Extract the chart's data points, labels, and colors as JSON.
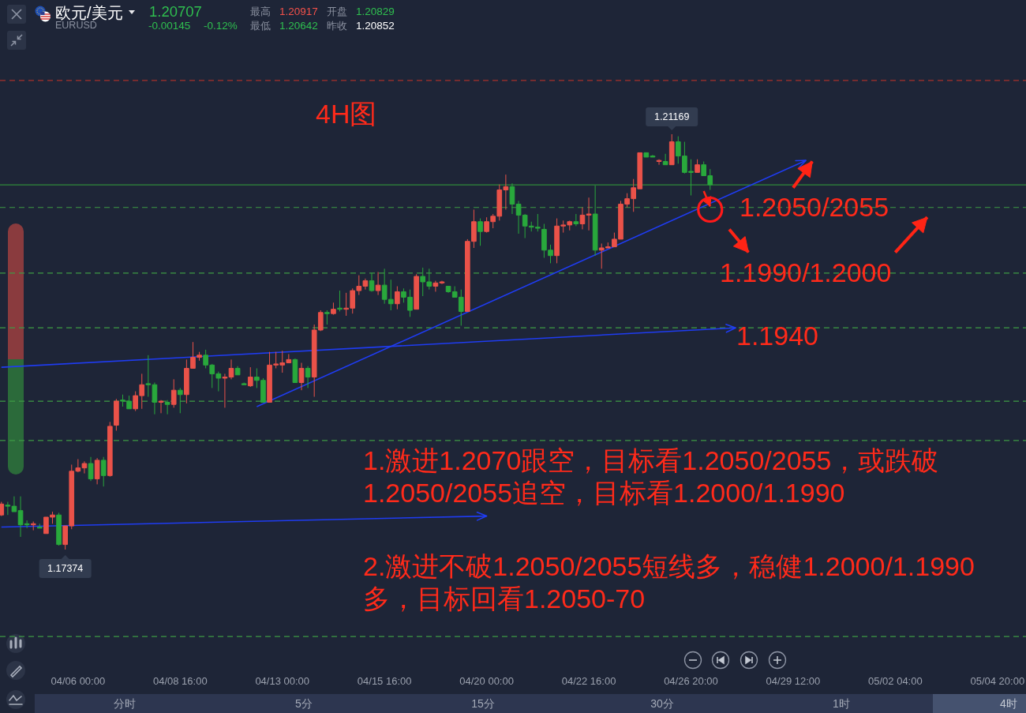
{
  "chart_data": {
    "type": "candlestick",
    "title": "欧元/美元",
    "subtitle": "EURUSD",
    "categories": [
      null,
      null,
      null,
      null,
      null,
      null,
      null,
      null,
      null,
      null,
      null,
      null,
      "04/06 00:00",
      null,
      null,
      null,
      null,
      null,
      null,
      null,
      null,
      null,
      null,
      null,
      null,
      null,
      null,
      null,
      "04/08 16:00",
      null,
      null,
      null,
      null,
      null,
      null,
      null,
      null,
      null,
      null,
      null,
      null,
      null,
      null,
      null,
      "04/13 00:00",
      null,
      null,
      null,
      null,
      null,
      null,
      null,
      null,
      null,
      null,
      null,
      null,
      null,
      null,
      null,
      "04/15 16:00",
      null,
      null,
      null,
      null,
      null,
      null,
      null,
      null,
      null,
      null,
      null,
      null,
      null,
      null,
      null,
      "04/20 00:00",
      null,
      null,
      null,
      null,
      null,
      null,
      null,
      null,
      null,
      null,
      null,
      null,
      null,
      null,
      null,
      "04/22 16:00",
      null,
      null,
      null,
      null,
      null,
      null,
      null,
      null,
      null,
      null,
      null,
      null,
      null,
      null,
      null,
      "04/26 20:00",
      null,
      null,
      null,
      null,
      null,
      null,
      null,
      null,
      null,
      null,
      null,
      null,
      null,
      null,
      null,
      "04/29 12:00",
      null,
      null,
      null,
      null,
      null,
      null,
      null,
      null,
      null,
      null,
      null,
      null,
      null,
      null,
      null,
      "05/02 04:00",
      null,
      null,
      null,
      null,
      null,
      null,
      null,
      null,
      null,
      null,
      null,
      null,
      null,
      null,
      null,
      "05/04 20:00",
      null,
      null,
      null
    ],
    "ohlc": [
      [
        1.1769,
        1.1781,
        1.1768,
        1.1779
      ],
      [
        1.1778,
        1.1781,
        1.1769,
        1.1777
      ],
      [
        1.1777,
        1.1786,
        1.1772,
        1.1772
      ],
      [
        1.1773,
        1.1786,
        1.1749,
        1.176
      ],
      [
        1.1761,
        1.1764,
        1.1757,
        1.176
      ],
      [
        1.176,
        1.1763,
        1.1755,
        1.1761
      ],
      [
        1.1758,
        1.1761,
        1.1757,
        1.1757
      ],
      [
        1.1752,
        1.1767,
        1.1752,
        1.1767
      ],
      [
        1.1767,
        1.1772,
        1.1761,
        1.1769
      ],
      [
        1.1769,
        1.1771,
        1.1741,
        1.1742
      ],
      [
        1.1742,
        1.1759,
        1.17374,
        1.1759
      ],
      [
        1.1759,
        1.1815,
        1.1756,
        1.1809
      ],
      [
        1.1809,
        1.182,
        1.1808,
        1.1812
      ],
      [
        1.1812,
        1.1818,
        1.1807,
        1.1816
      ],
      [
        1.1816,
        1.1822,
        1.18,
        1.1802
      ],
      [
        1.1802,
        1.1821,
        1.1797,
        1.1819
      ],
      [
        1.1819,
        1.1822,
        1.1795,
        1.1805
      ],
      [
        1.1805,
        1.1854,
        1.1804,
        1.185
      ],
      [
        1.1851,
        1.1875,
        1.1846,
        1.1873
      ],
      [
        1.1874,
        1.1879,
        1.1868,
        1.1873
      ],
      [
        1.1873,
        1.1878,
        1.1866,
        1.1866
      ],
      [
        1.1866,
        1.1882,
        1.1864,
        1.1878
      ],
      [
        1.1878,
        1.1898,
        1.1866,
        1.1888
      ],
      [
        1.1889,
        1.1915,
        1.1877,
        1.1888
      ],
      [
        1.1888,
        1.189,
        1.1861,
        1.1872
      ],
      [
        1.1872,
        1.1874,
        1.1862,
        1.1873
      ],
      [
        1.1872,
        1.1874,
        1.1861,
        1.187
      ],
      [
        1.187,
        1.1893,
        1.1867,
        1.1883
      ],
      [
        1.1883,
        1.1885,
        1.1862,
        1.1879
      ],
      [
        1.1879,
        1.1911,
        1.1871,
        1.1903
      ],
      [
        1.1903,
        1.1927,
        1.1903,
        1.1913
      ],
      [
        1.1913,
        1.1918,
        1.191,
        1.1915
      ],
      [
        1.1915,
        1.192,
        1.1903,
        1.1906
      ],
      [
        1.1906,
        1.1907,
        1.1885,
        1.1898
      ],
      [
        1.1898,
        1.19,
        1.1882,
        1.1894
      ],
      [
        1.1894,
        1.1898,
        1.1867,
        1.1895
      ],
      [
        1.1895,
        1.1911,
        1.1893,
        1.1903
      ],
      [
        1.1903,
        1.1905,
        1.1897,
        1.1897
      ],
      [
        1.1889,
        1.189,
        1.1888,
        1.1888
      ],
      [
        1.1887,
        1.1904,
        1.1886,
        1.1895
      ],
      [
        1.1895,
        1.1903,
        1.1885,
        1.1892
      ],
      [
        1.1892,
        1.1894,
        1.1872,
        1.1872
      ],
      [
        1.1872,
        1.1918,
        1.1872,
        1.1906
      ],
      [
        1.1906,
        1.1918,
        1.1903,
        1.1907
      ],
      [
        1.1906,
        1.1919,
        1.1899,
        1.1908
      ],
      [
        1.1908,
        1.1916,
        1.1908,
        1.1911
      ],
      [
        1.1911,
        1.1912,
        1.189,
        1.189
      ],
      [
        1.189,
        1.1908,
        1.1883,
        1.1903
      ],
      [
        1.1903,
        1.1905,
        1.1885,
        1.1895
      ],
      [
        1.1895,
        1.1943,
        1.1877,
        1.1938
      ],
      [
        1.1938,
        1.1956,
        1.1937,
        1.1954
      ],
      [
        1.1954,
        1.1956,
        1.1943,
        1.1953
      ],
      [
        1.1953,
        1.1963,
        1.1952,
        1.1957
      ],
      [
        1.1958,
        1.1974,
        1.1955,
        1.1957
      ],
      [
        1.1957,
        1.1972,
        1.1951,
        1.1958
      ],
      [
        1.1958,
        1.1976,
        1.1953,
        1.1974
      ],
      [
        1.1974,
        1.1988,
        1.197,
        1.1978
      ],
      [
        1.1978,
        1.1985,
        1.1975,
        1.1983
      ],
      [
        1.1983,
        1.199,
        1.1973,
        1.1974
      ],
      [
        1.1974,
        1.1991,
        1.197,
        1.1979
      ],
      [
        1.1979,
        1.1994,
        1.1962,
        1.1966
      ],
      [
        1.1966,
        1.1984,
        1.1956,
        1.1962
      ],
      [
        1.1962,
        1.1978,
        1.1957,
        1.1973
      ],
      [
        1.1973,
        1.1976,
        1.1963,
        1.1968
      ],
      [
        1.1968,
        1.1975,
        1.195,
        1.1956
      ],
      [
        1.1957,
        1.1989,
        1.1957,
        1.1987
      ],
      [
        1.1987,
        1.1995,
        1.1969,
        1.1982
      ],
      [
        1.1982,
        1.1994,
        1.1975,
        1.1978
      ],
      [
        1.1978,
        1.1983,
        1.1973,
        1.1981
      ],
      [
        1.1981,
        1.1983,
        1.198,
        1.1982
      ],
      [
        1.1978,
        1.1978,
        1.1972,
        1.1973
      ],
      [
        1.1973,
        1.1978,
        1.1968,
        1.1968
      ],
      [
        1.1968,
        1.1975,
        1.1942,
        1.1955
      ],
      [
        1.1955,
        1.2021,
        1.1955,
        1.2019
      ],
      [
        1.2019,
        1.2048,
        1.2013,
        1.2037
      ],
      [
        1.2037,
        1.204,
        1.2015,
        1.2028
      ],
      [
        1.2028,
        1.2041,
        1.2027,
        1.2037
      ],
      [
        1.2037,
        1.2044,
        1.2031,
        1.2042
      ],
      [
        1.2042,
        1.2071,
        1.2038,
        1.2066
      ],
      [
        1.2066,
        1.208,
        1.2048,
        1.2069
      ],
      [
        1.2069,
        1.2072,
        1.2044,
        1.2053
      ],
      [
        1.2053,
        1.2056,
        1.2026,
        1.2043
      ],
      [
        1.2043,
        1.2044,
        1.2022,
        1.2033
      ],
      [
        1.2033,
        1.2037,
        1.2028,
        1.2032
      ],
      [
        1.2032,
        1.2044,
        1.2028,
        1.2031
      ],
      [
        1.203,
        1.2035,
        1.2004,
        1.2011
      ],
      [
        1.2011,
        1.2016,
        1.1999,
        1.2006
      ],
      [
        1.2006,
        1.204,
        1.1999,
        1.2033
      ],
      [
        1.2033,
        1.2038,
        1.2027,
        1.2034
      ],
      [
        1.2034,
        1.2038,
        1.2029,
        1.2037
      ],
      [
        1.2037,
        1.2044,
        1.2033,
        1.2035
      ],
      [
        1.2035,
        1.205,
        1.203,
        1.2043
      ],
      [
        1.2043,
        1.2059,
        1.2029,
        1.2044
      ],
      [
        1.2044,
        1.207,
        1.2006,
        1.2011
      ],
      [
        1.2011,
        1.2017,
        1.1994,
        1.2013
      ],
      [
        1.2013,
        1.2018,
        1.2013,
        1.2014
      ],
      [
        1.2014,
        1.2027,
        1.2014,
        1.2021
      ],
      [
        1.2021,
        1.2056,
        1.2021,
        1.2053
      ],
      [
        1.2053,
        1.2063,
        1.205,
        1.2058
      ],
      [
        1.2058,
        1.2076,
        1.2046,
        1.2068
      ],
      [
        1.2067,
        1.21,
        1.2067,
        1.21
      ],
      [
        1.21,
        1.21,
        1.2096,
        1.2096
      ],
      [
        1.2097,
        1.2098,
        1.2096,
        1.2096
      ],
      [
        1.2092,
        1.2094,
        1.2089,
        1.2093
      ],
      [
        1.2092,
        1.2099,
        1.2089,
        1.2089
      ],
      [
        1.2089,
        1.21169,
        1.2089,
        1.211
      ],
      [
        1.211,
        1.2115,
        1.209,
        1.2097
      ],
      [
        1.2097,
        1.211,
        1.2081,
        1.2082
      ],
      [
        1.2083,
        1.2094,
        1.2061,
        1.2082
      ],
      [
        1.2082,
        1.2094,
        1.2082,
        1.2089
      ],
      [
        1.2089,
        1.2092,
        1.2079,
        1.2079
      ],
      [
        1.2079,
        1.2085,
        1.2066,
        1.20707
      ],
      null,
      null,
      null,
      null,
      null,
      null,
      null,
      null,
      null,
      null,
      null,
      null,
      null,
      null,
      null,
      null,
      null,
      null,
      null,
      null,
      null,
      null,
      null,
      null,
      null,
      null,
      null,
      null,
      null,
      null,
      null,
      null,
      null,
      null,
      null,
      null,
      null,
      null,
      null,
      null,
      null,
      null,
      null,
      null,
      null,
      null,
      null,
      null
    ],
    "series": [
      {
        "type": "line",
        "color": "#1f3cf2",
        "values": [
          1.1758,
          null,
          null,
          null,
          null,
          null,
          null,
          null,
          null,
          null,
          null,
          null,
          null,
          null,
          null,
          null,
          null,
          null,
          null,
          null,
          null,
          null,
          null,
          null,
          null,
          null,
          null,
          null,
          null,
          null,
          null,
          null,
          null,
          null,
          null,
          null,
          null,
          null,
          null,
          null,
          null,
          null,
          null,
          null,
          null,
          null,
          null,
          null,
          null,
          null,
          null,
          null,
          null,
          null,
          null,
          null,
          null,
          null,
          null,
          null,
          null,
          null,
          null,
          null,
          null,
          null,
          null,
          null,
          null,
          null,
          null,
          null,
          null,
          null,
          null,
          null,
          1.1768,
          null,
          null,
          null,
          null,
          null,
          null,
          null,
          null,
          null,
          null,
          null,
          null,
          null,
          null,
          null,
          null,
          null,
          null,
          null,
          null,
          null,
          null,
          null,
          null,
          null,
          null,
          null,
          null,
          null,
          null,
          null,
          null,
          null,
          null,
          null,
          null,
          null,
          null,
          null,
          null,
          null,
          null,
          null,
          null,
          null,
          null,
          null,
          null,
          null,
          null,
          null,
          null,
          null,
          null,
          null,
          null,
          null,
          null,
          null,
          null,
          null,
          null,
          null,
          null,
          null,
          null,
          null,
          null,
          null,
          null,
          null,
          null,
          null,
          null,
          null,
          null,
          null,
          null,
          null,
          null,
          null,
          null,
          null
        ]
      },
      {
        "type": "line",
        "color": "#1f3cf2",
        "values": [
          1.1904,
          null,
          null,
          null,
          null,
          null,
          null,
          null,
          null,
          null,
          null,
          null,
          null,
          null,
          null,
          null,
          null,
          null,
          null,
          null,
          null,
          null,
          null,
          null,
          null,
          null,
          null,
          null,
          null,
          null,
          null,
          null,
          null,
          null,
          null,
          null,
          null,
          null,
          null,
          null,
          null,
          null,
          null,
          null,
          null,
          null,
          null,
          null,
          null,
          null,
          null,
          null,
          null,
          null,
          null,
          null,
          null,
          null,
          null,
          null,
          null,
          null,
          null,
          null,
          null,
          null,
          null,
          null,
          null,
          null,
          null,
          null,
          null,
          null,
          null,
          null,
          null,
          null,
          null,
          null,
          null,
          null,
          null,
          null,
          null,
          null,
          null,
          null,
          null,
          null,
          null,
          null,
          null,
          null,
          null,
          null,
          null,
          null,
          null,
          null,
          null,
          null,
          null,
          null,
          null,
          null,
          null,
          null,
          null,
          null,
          null,
          null,
          null,
          null,
          null,
          1.194,
          null,
          null,
          null,
          null,
          null,
          null,
          null,
          null,
          null,
          null,
          null,
          null,
          null,
          null,
          null,
          null,
          null,
          null,
          null,
          null,
          null,
          null,
          null,
          null,
          null,
          null,
          null,
          null,
          null,
          null,
          null,
          null,
          null,
          null,
          null,
          null,
          null,
          null,
          null,
          null,
          null,
          null,
          null,
          null
        ]
      },
      {
        "type": "line",
        "color": "#1f3cf2",
        "values": [
          null,
          null,
          null,
          null,
          null,
          null,
          null,
          null,
          null,
          null,
          null,
          null,
          null,
          null,
          null,
          null,
          null,
          null,
          null,
          null,
          null,
          null,
          null,
          null,
          null,
          null,
          null,
          null,
          null,
          null,
          null,
          null,
          null,
          null,
          null,
          null,
          null,
          null,
          null,
          null,
          1.1868,
          null,
          null,
          null,
          null,
          null,
          null,
          null,
          null,
          null,
          null,
          null,
          null,
          null,
          null,
          null,
          null,
          null,
          null,
          null,
          null,
          null,
          null,
          null,
          null,
          null,
          null,
          null,
          null,
          null,
          null,
          null,
          null,
          null,
          null,
          null,
          null,
          null,
          null,
          null,
          null,
          null,
          null,
          null,
          null,
          null,
          null,
          null,
          null,
          null,
          null,
          null,
          null,
          null,
          null,
          null,
          null,
          null,
          null,
          null,
          null,
          null,
          null,
          null,
          null,
          null,
          null,
          null,
          null,
          null,
          null,
          null,
          null,
          null,
          null,
          null,
          null,
          null,
          null,
          null,
          null,
          null,
          null,
          null,
          null,
          null,
          1.2093,
          null,
          null,
          null,
          null,
          null,
          null,
          null,
          null,
          null,
          null,
          null,
          null,
          null,
          null,
          null,
          null,
          null,
          null,
          null,
          null,
          null,
          null,
          null,
          null,
          null,
          null,
          null,
          null,
          null,
          null,
          null,
          null,
          null
        ]
      },
      {
        "type": "line",
        "color": "#ff2415",
        "values": [
          null,
          null,
          null,
          null,
          null,
          null,
          null,
          null,
          null,
          null,
          null,
          null,
          null,
          null,
          null,
          null,
          null,
          null,
          null,
          null,
          null,
          null,
          null,
          null,
          null,
          null,
          null,
          null,
          null,
          null,
          null,
          null,
          null,
          null,
          null,
          null,
          null,
          null,
          null,
          null,
          null,
          null,
          null,
          null,
          null,
          null,
          null,
          null,
          null,
          null,
          null,
          null,
          null,
          null,
          null,
          null,
          null,
          null,
          null,
          null,
          null,
          null,
          null,
          null,
          null,
          null,
          null,
          null,
          null,
          null,
          null,
          null,
          null,
          null,
          null,
          null,
          null,
          null,
          null,
          null,
          null,
          null,
          null,
          null,
          null,
          null,
          null,
          null,
          null,
          null,
          null,
          null,
          null,
          null,
          null,
          null,
          null,
          null,
          null,
          null,
          null,
          null,
          null,
          null,
          null,
          null,
          null,
          null,
          null,
          null,
          null,
          null,
          null,
          null,
          null,
          null,
          null,
          null,
          null,
          null,
          null,
          null,
          null,
          null,
          1.2068,
          null,
          null,
          1.2092,
          null,
          null,
          null,
          null,
          null,
          null,
          null,
          null,
          null,
          null,
          null,
          null,
          null,
          null,
          null,
          null,
          null,
          null,
          null,
          null,
          null,
          null,
          null,
          null,
          null,
          null,
          null,
          null,
          null,
          null,
          null,
          null
        ]
      },
      {
        "type": "line",
        "color": "#ff2415",
        "values": [
          null,
          null,
          null,
          null,
          null,
          null,
          null,
          null,
          null,
          null,
          null,
          null,
          null,
          null,
          null,
          null,
          null,
          null,
          null,
          null,
          null,
          null,
          null,
          null,
          null,
          null,
          null,
          null,
          null,
          null,
          null,
          null,
          null,
          null,
          null,
          null,
          null,
          null,
          null,
          null,
          null,
          null,
          null,
          null,
          null,
          null,
          null,
          null,
          null,
          null,
          null,
          null,
          null,
          null,
          null,
          null,
          null,
          null,
          null,
          null,
          null,
          null,
          null,
          null,
          null,
          null,
          null,
          null,
          null,
          null,
          null,
          null,
          null,
          null,
          null,
          null,
          null,
          null,
          null,
          null,
          null,
          null,
          null,
          null,
          null,
          null,
          null,
          null,
          null,
          null,
          null,
          null,
          null,
          null,
          null,
          null,
          null,
          null,
          null,
          null,
          null,
          null,
          null,
          null,
          null,
          null,
          null,
          null,
          null,
          null,
          null,
          null,
          null,
          null,
          1.203,
          null,
          null,
          1.2009,
          null,
          null,
          null,
          null,
          null,
          null,
          null,
          null,
          null,
          null,
          null,
          null,
          null,
          null,
          null,
          null,
          null,
          null,
          null,
          null,
          null,
          null,
          null,
          null,
          null,
          null,
          null,
          null,
          null,
          null,
          null,
          null,
          null,
          null,
          null,
          null,
          null,
          null,
          null,
          null,
          null,
          null
        ]
      },
      {
        "type": "line",
        "color": "#ff2415",
        "values": [
          null,
          null,
          null,
          null,
          null,
          null,
          null,
          null,
          null,
          null,
          null,
          null,
          null,
          null,
          null,
          null,
          null,
          null,
          null,
          null,
          null,
          null,
          null,
          null,
          null,
          null,
          null,
          null,
          null,
          null,
          null,
          null,
          null,
          null,
          null,
          null,
          null,
          null,
          null,
          null,
          null,
          null,
          null,
          null,
          null,
          null,
          null,
          null,
          null,
          null,
          null,
          null,
          null,
          null,
          null,
          null,
          null,
          null,
          null,
          null,
          null,
          null,
          null,
          null,
          null,
          null,
          null,
          null,
          null,
          null,
          null,
          null,
          null,
          null,
          null,
          null,
          null,
          null,
          null,
          null,
          null,
          null,
          null,
          null,
          null,
          null,
          null,
          null,
          null,
          null,
          null,
          null,
          null,
          null,
          null,
          null,
          null,
          null,
          null,
          null,
          null,
          null,
          null,
          null,
          null,
          null,
          null,
          null,
          null,
          null,
          null,
          null,
          null,
          null,
          null,
          null,
          null,
          null,
          null,
          null,
          null,
          null,
          null,
          null,
          null,
          null,
          null,
          null,
          null,
          null,
          null,
          null,
          null,
          null,
          null,
          null,
          null,
          null,
          null,
          null,
          1.2009,
          null,
          null,
          null,
          null,
          1.2041,
          null,
          null,
          null,
          null,
          null,
          null,
          null,
          null,
          null,
          null,
          null,
          null,
          null,
          null
        ]
      },
      {
        "type": "line",
        "color": "#ff2415",
        "values": [
          null,
          null,
          null,
          null,
          null,
          null,
          null,
          null,
          null,
          null,
          null,
          null,
          null,
          null,
          null,
          null,
          null,
          null,
          null,
          null,
          null,
          null,
          null,
          null,
          null,
          null,
          null,
          null,
          null,
          null,
          null,
          null,
          null,
          null,
          null,
          null,
          null,
          null,
          null,
          null,
          null,
          null,
          null,
          null,
          null,
          null,
          null,
          null,
          null,
          null,
          null,
          null,
          null,
          null,
          null,
          null,
          null,
          null,
          null,
          null,
          null,
          null,
          null,
          null,
          null,
          null,
          null,
          null,
          null,
          null,
          null,
          null,
          null,
          null,
          null,
          null,
          null,
          null,
          null,
          null,
          null,
          null,
          null,
          null,
          null,
          null,
          null,
          null,
          null,
          null,
          null,
          null,
          null,
          null,
          null,
          null,
          null,
          null,
          null,
          null,
          null,
          null,
          null,
          null,
          null,
          null,
          null,
          null,
          null,
          null,
          1.2065,
          1.2051,
          null,
          null,
          null,
          null,
          null,
          null,
          null,
          null,
          null,
          null,
          null,
          null,
          null,
          null,
          null,
          null,
          null,
          null,
          null,
          null,
          null,
          null,
          null,
          null,
          null,
          null,
          null,
          null,
          null,
          null,
          null,
          null,
          null,
          null,
          null,
          null,
          null,
          null,
          null,
          null,
          null,
          null,
          null,
          null,
          null,
          null,
          null,
          null
        ]
      },
      {
        "type": "scatter",
        "marker": "circle",
        "color": "#ff1a1a",
        "values": [
          null,
          null,
          null,
          null,
          null,
          null,
          null,
          null,
          null,
          null,
          null,
          null,
          null,
          null,
          null,
          null,
          null,
          null,
          null,
          null,
          null,
          null,
          null,
          null,
          null,
          null,
          null,
          null,
          null,
          null,
          null,
          null,
          null,
          null,
          null,
          null,
          null,
          null,
          null,
          null,
          null,
          null,
          null,
          null,
          null,
          null,
          null,
          null,
          null,
          null,
          null,
          null,
          null,
          null,
          null,
          null,
          null,
          null,
          null,
          null,
          null,
          null,
          null,
          null,
          null,
          null,
          null,
          null,
          null,
          null,
          null,
          null,
          null,
          null,
          null,
          null,
          null,
          null,
          null,
          null,
          null,
          null,
          null,
          null,
          null,
          null,
          null,
          null,
          null,
          null,
          null,
          null,
          null,
          null,
          null,
          null,
          null,
          null,
          null,
          null,
          null,
          null,
          null,
          null,
          null,
          null,
          null,
          null,
          null,
          null,
          null,
          1.2048,
          null,
          null,
          null,
          null,
          null,
          null,
          null,
          null,
          null,
          null,
          null,
          null,
          null,
          null,
          null,
          null,
          null,
          null,
          null,
          null,
          null,
          null,
          null,
          null,
          null,
          null,
          null,
          null,
          null,
          null,
          null,
          null,
          null,
          null,
          null,
          null,
          null,
          null,
          null,
          null,
          null,
          null,
          null,
          null,
          null,
          null,
          null,
          null
        ]
      }
    ],
    "ref_lines": [
      {
        "axis": "y",
        "value": 1.2166,
        "color": "#a8312d",
        "line_style": "dashed"
      },
      {
        "axis": "y",
        "value": 1.20707,
        "color": "#2f8a3a",
        "line_style": "solid"
      },
      {
        "axis": "y",
        "value": 1.205,
        "label": "1.2050/2055",
        "color": "#3e9a45",
        "line_style": "dashed"
      },
      {
        "axis": "y",
        "value": 1.199,
        "label": "1.1990/1.2000",
        "color": "#3e9a45",
        "line_style": "dashed"
      },
      {
        "axis": "y",
        "value": 1.194,
        "label": "1.1940",
        "color": "#3e9a45",
        "line_style": "dashed"
      },
      {
        "axis": "y",
        "value": 1.1873,
        "color": "#3e9a45",
        "line_style": "dashed"
      },
      {
        "axis": "y",
        "value": 1.1837,
        "color": "#3e9a45",
        "line_style": "dashed"
      },
      {
        "axis": "y",
        "value": 1.1658,
        "color": "#3e9a45",
        "line_style": "dashed"
      }
    ],
    "annotations": [
      "4H图",
      "1.激进1.2070跟空，目标看1.2050/2055，或跌破1.2050/2055追空，目标看1.2000/1.1990",
      "2.激进不破1.2050/2055短线多，稳健1.2000/1.1990多，目标回看1.2050-70",
      "1.20707",
      "-0.00145",
      "-0.12%",
      "最高",
      "1.20917",
      "开盘",
      "1.20829",
      "最低",
      "1.20642",
      "昨收",
      "1.20852",
      {
        "text": "1.21169",
        "y": 1.21169
      },
      {
        "text": "1.17374",
        "y": 1.17374
      },
      "分时",
      "5分",
      "15分",
      "30分",
      "1时",
      "4时"
    ],
    "tick_labels": "x"
  }
}
